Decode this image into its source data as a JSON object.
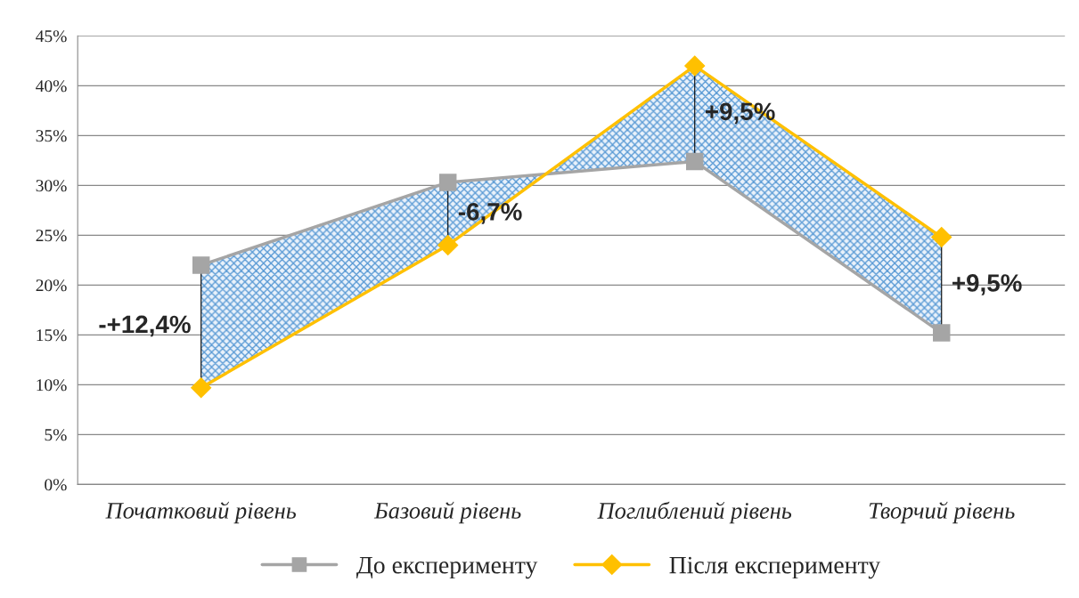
{
  "chart_data": {
    "type": "line",
    "categories": [
      "Початковий рівень",
      "Базовий рівень",
      "Поглиблений рівень",
      "Творчий рівень"
    ],
    "series": [
      {
        "name": "До експерименту",
        "color": "#a5a5a5",
        "marker": "square",
        "values": [
          22.0,
          30.3,
          32.4,
          15.2
        ]
      },
      {
        "name": "Після експерименту",
        "color": "#ffc000",
        "marker": "diamond",
        "values": [
          9.7,
          24.0,
          42.0,
          24.8
        ]
      }
    ],
    "ylim": [
      0,
      45
    ],
    "yticks": [
      {
        "value": 0,
        "label": "0%"
      },
      {
        "value": 5,
        "label": "5%"
      },
      {
        "value": 10,
        "label": "10%"
      },
      {
        "value": 15,
        "label": "15%"
      },
      {
        "value": 20,
        "label": "20%"
      },
      {
        "value": 25,
        "label": "25%"
      },
      {
        "value": 30,
        "label": "30%"
      },
      {
        "value": 35,
        "label": "35%"
      },
      {
        "value": 40,
        "label": "40%"
      },
      {
        "value": 45,
        "label": "45%"
      }
    ],
    "grid": "y",
    "legend": "bottom",
    "annotations": [
      "-+12,4%",
      "-6,7%",
      "+9,5%",
      "+9,5%"
    ]
  }
}
